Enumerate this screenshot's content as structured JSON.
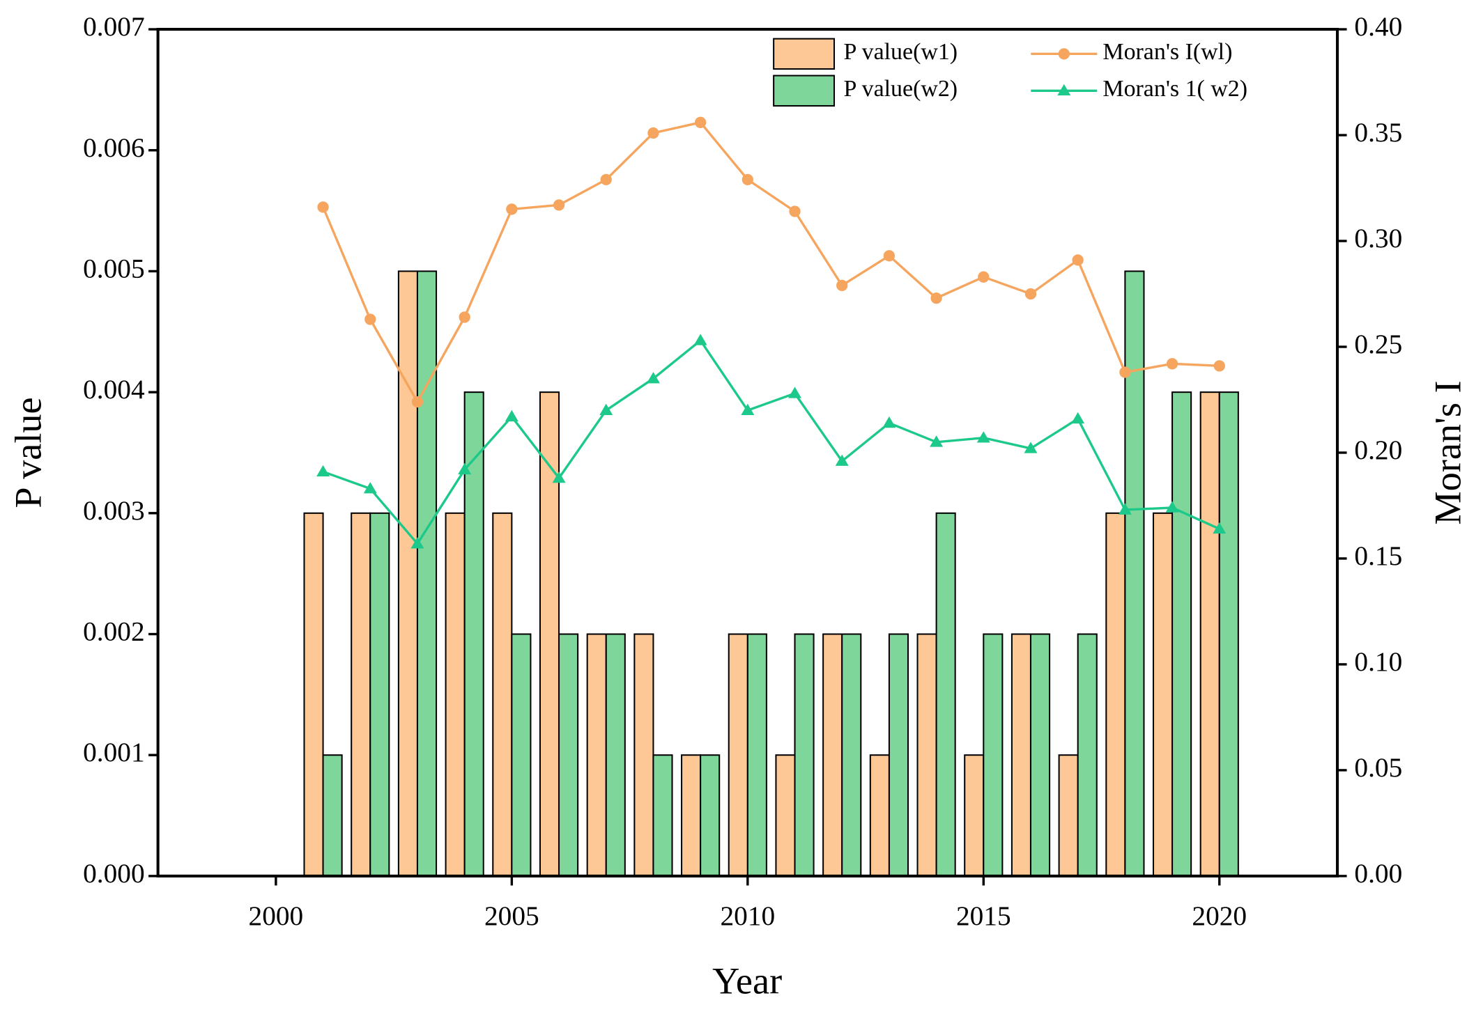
{
  "chart_data": {
    "type": "bar",
    "x": [
      2001,
      2002,
      2003,
      2004,
      2005,
      2006,
      2007,
      2008,
      2009,
      2010,
      2011,
      2012,
      2013,
      2014,
      2015,
      2016,
      2017,
      2018,
      2019,
      2020
    ],
    "xlabel": "Year",
    "ylabel": "P value",
    "y2label": "Moran's I",
    "xlim": [
      1997.5,
      2022.5
    ],
    "xticks": [
      2000,
      2005,
      2010,
      2015,
      2020
    ],
    "ylim": [
      0,
      0.007
    ],
    "yticks": [
      {
        "value": 0,
        "label": "0.000"
      },
      0.001,
      0.002,
      0.003,
      0.004,
      0.005,
      0.006,
      0.007
    ],
    "y2lim": [
      0,
      0.4
    ],
    "y2ticks": [
      {
        "value": 0,
        "label": "0.00"
      },
      0.05,
      {
        "value": 0.1,
        "label": "0.10"
      },
      0.15,
      {
        "value": 0.2,
        "label": "0.20"
      },
      0.25,
      {
        "value": 0.3,
        "label": "0.30"
      },
      0.35,
      {
        "value": 0.4,
        "label": "0.40"
      }
    ],
    "series": [
      {
        "name": "P value(w1)",
        "type": "bar",
        "color": "#FDC895",
        "values": [
          0.003,
          0.003,
          0.005,
          0.003,
          0.003,
          0.004,
          0.002,
          0.002,
          0.001,
          0.002,
          0.001,
          0.002,
          0.001,
          0.002,
          0.001,
          0.002,
          0.001,
          0.003,
          0.003,
          0.004
        ]
      },
      {
        "name": "P value(w2)",
        "type": "bar",
        "color": "#7FD69B",
        "values": [
          0.001,
          0.003,
          0.005,
          0.004,
          0.002,
          0.002,
          0.002,
          0.001,
          0.001,
          0.002,
          0.002,
          0.002,
          0.002,
          0.003,
          0.002,
          0.002,
          0.002,
          0.005,
          0.004,
          0.004
        ]
      },
      {
        "name": "Moran's I(wl)",
        "type": "line",
        "marker": "circle",
        "axis": "y2",
        "color": "#F5A55E",
        "values": [
          0.316,
          0.263,
          0.224,
          0.264,
          0.315,
          0.317,
          0.329,
          0.351,
          0.356,
          0.329,
          0.314,
          0.279,
          0.293,
          0.273,
          0.283,
          0.275,
          0.291,
          0.238,
          0.242,
          0.241
        ]
      },
      {
        "name": "Moran's 1( w2)",
        "type": "line",
        "marker": "triangle",
        "axis": "y2",
        "color": "#1DC98A",
        "values": [
          0.191,
          0.183,
          0.157,
          0.192,
          0.217,
          0.188,
          0.22,
          0.235,
          0.253,
          0.22,
          0.228,
          0.196,
          0.214,
          0.205,
          0.207,
          0.202,
          0.216,
          0.173,
          0.174,
          0.164
        ]
      }
    ]
  }
}
